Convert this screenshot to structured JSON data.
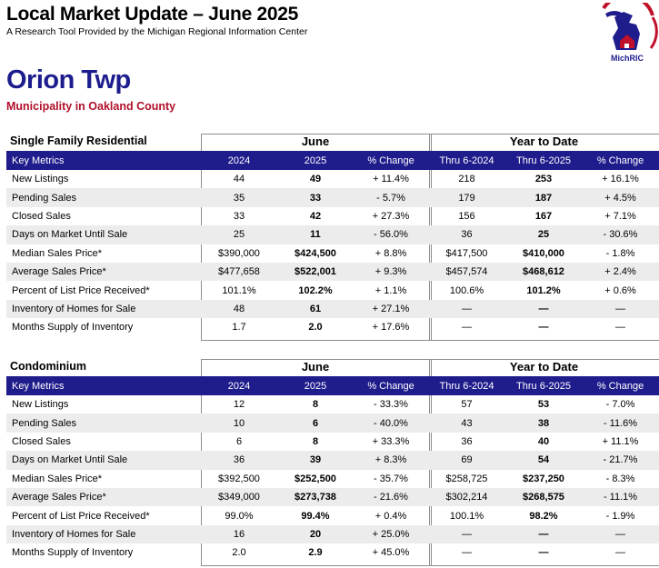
{
  "header": {
    "title": "Local Market Update – June 2025",
    "subtitle": "A Research Tool Provided by the Michigan Regional Information Center",
    "logo_text": "MichRIC",
    "logo_ring_text": "Michigan Regional Information Center"
  },
  "area": {
    "name": "Orion Twp",
    "subtitle": "Municipality in Oakland County"
  },
  "colors": {
    "header_bar": "#1f1c8c",
    "area_name": "#1c1c8e",
    "area_subtitle": "#b0102a",
    "stripe": "#ececec"
  },
  "columns": [
    "Key Metrics",
    "2024",
    "2025",
    "% Change",
    "Thru 6-2024",
    "Thru 6-2025",
    "% Change"
  ],
  "sections": [
    {
      "title": "Single Family Residential",
      "group_june": "June",
      "group_ytd": "Year to Date",
      "rows": [
        [
          "New Listings",
          "44",
          "49",
          "+ 11.4%",
          "218",
          "253",
          "+ 16.1%"
        ],
        [
          "Pending Sales",
          "35",
          "33",
          "- 5.7%",
          "179",
          "187",
          "+ 4.5%"
        ],
        [
          "Closed Sales",
          "33",
          "42",
          "+ 27.3%",
          "156",
          "167",
          "+ 7.1%"
        ],
        [
          "Days on Market Until Sale",
          "25",
          "11",
          "- 56.0%",
          "36",
          "25",
          "- 30.6%"
        ],
        [
          "Median Sales Price*",
          "$390,000",
          "$424,500",
          "+ 8.8%",
          "$417,500",
          "$410,000",
          "- 1.8%"
        ],
        [
          "Average Sales Price*",
          "$477,658",
          "$522,001",
          "+ 9.3%",
          "$457,574",
          "$468,612",
          "+ 2.4%"
        ],
        [
          "Percent of List Price Received*",
          "101.1%",
          "102.2%",
          "+ 1.1%",
          "100.6%",
          "101.2%",
          "+ 0.6%"
        ],
        [
          "Inventory of Homes for Sale",
          "48",
          "61",
          "+ 27.1%",
          "—",
          "—",
          "—"
        ],
        [
          "Months Supply of Inventory",
          "1.7",
          "2.0",
          "+ 17.6%",
          "—",
          "—",
          "—"
        ]
      ]
    },
    {
      "title": "Condominium",
      "group_june": "June",
      "group_ytd": "Year to Date",
      "rows": [
        [
          "New Listings",
          "12",
          "8",
          "- 33.3%",
          "57",
          "53",
          "- 7.0%"
        ],
        [
          "Pending Sales",
          "10",
          "6",
          "- 40.0%",
          "43",
          "38",
          "- 11.6%"
        ],
        [
          "Closed Sales",
          "6",
          "8",
          "+ 33.3%",
          "36",
          "40",
          "+ 11.1%"
        ],
        [
          "Days on Market Until Sale",
          "36",
          "39",
          "+ 8.3%",
          "69",
          "54",
          "- 21.7%"
        ],
        [
          "Median Sales Price*",
          "$392,500",
          "$252,500",
          "- 35.7%",
          "$258,725",
          "$237,250",
          "- 8.3%"
        ],
        [
          "Average Sales Price*",
          "$349,000",
          "$273,738",
          "- 21.6%",
          "$302,214",
          "$268,575",
          "- 11.1%"
        ],
        [
          "Percent of List Price Received*",
          "99.0%",
          "99.4%",
          "+ 0.4%",
          "100.1%",
          "98.2%",
          "- 1.9%"
        ],
        [
          "Inventory of Homes for Sale",
          "16",
          "20",
          "+ 25.0%",
          "—",
          "—",
          "—"
        ],
        [
          "Months Supply of Inventory",
          "2.0",
          "2.9",
          "+ 45.0%",
          "—",
          "—",
          "—"
        ]
      ]
    }
  ]
}
